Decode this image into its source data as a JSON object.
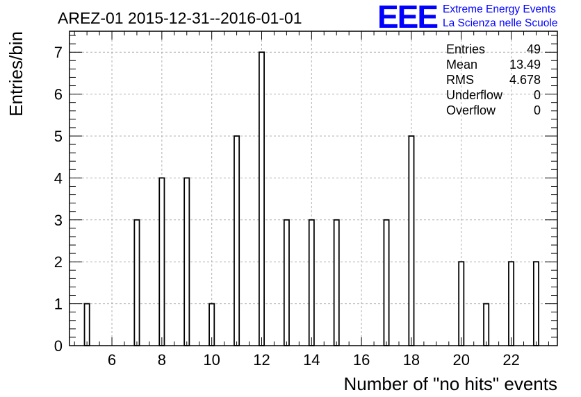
{
  "header": {
    "title": "AREZ-01 2015-12-31--2016-01-01",
    "logo_mark": "EEE",
    "logo_line1": "Extreme Energy Events",
    "logo_line2": "La Scienza nelle Scuole"
  },
  "stats": {
    "entries_label": "Entries",
    "entries_value": "49",
    "mean_label": "Mean",
    "mean_value": "13.49",
    "rms_label": "RMS",
    "rms_value": "4.678",
    "underflow_label": "Underflow",
    "underflow_value": "0",
    "overflow_label": "Overflow",
    "overflow_value": "0"
  },
  "colors": {
    "bar_stroke": "#000000",
    "grid": "#b0b0b0",
    "logo": "#0000ff"
  },
  "chart_data": {
    "type": "bar",
    "title": "AREZ-01 2015-12-31--2016-01-01",
    "xlabel": "Number of \"no hits\" events",
    "ylabel": "Entries/bin",
    "xlim": [
      4.3,
      23.85
    ],
    "ylim": [
      0,
      7.5
    ],
    "grid": true,
    "bar_width": 0.2,
    "x_ticks": [
      6,
      8,
      10,
      12,
      14,
      16,
      18,
      20,
      22
    ],
    "y_ticks": [
      0,
      1,
      2,
      3,
      4,
      5,
      6,
      7
    ],
    "x": [
      5,
      7,
      8,
      9,
      10,
      11,
      12,
      13,
      14,
      15,
      17,
      18,
      20,
      21,
      22,
      23
    ],
    "values": [
      1,
      3,
      4,
      4,
      1,
      5,
      7,
      3,
      3,
      3,
      3,
      5,
      2,
      1,
      2,
      2
    ]
  }
}
